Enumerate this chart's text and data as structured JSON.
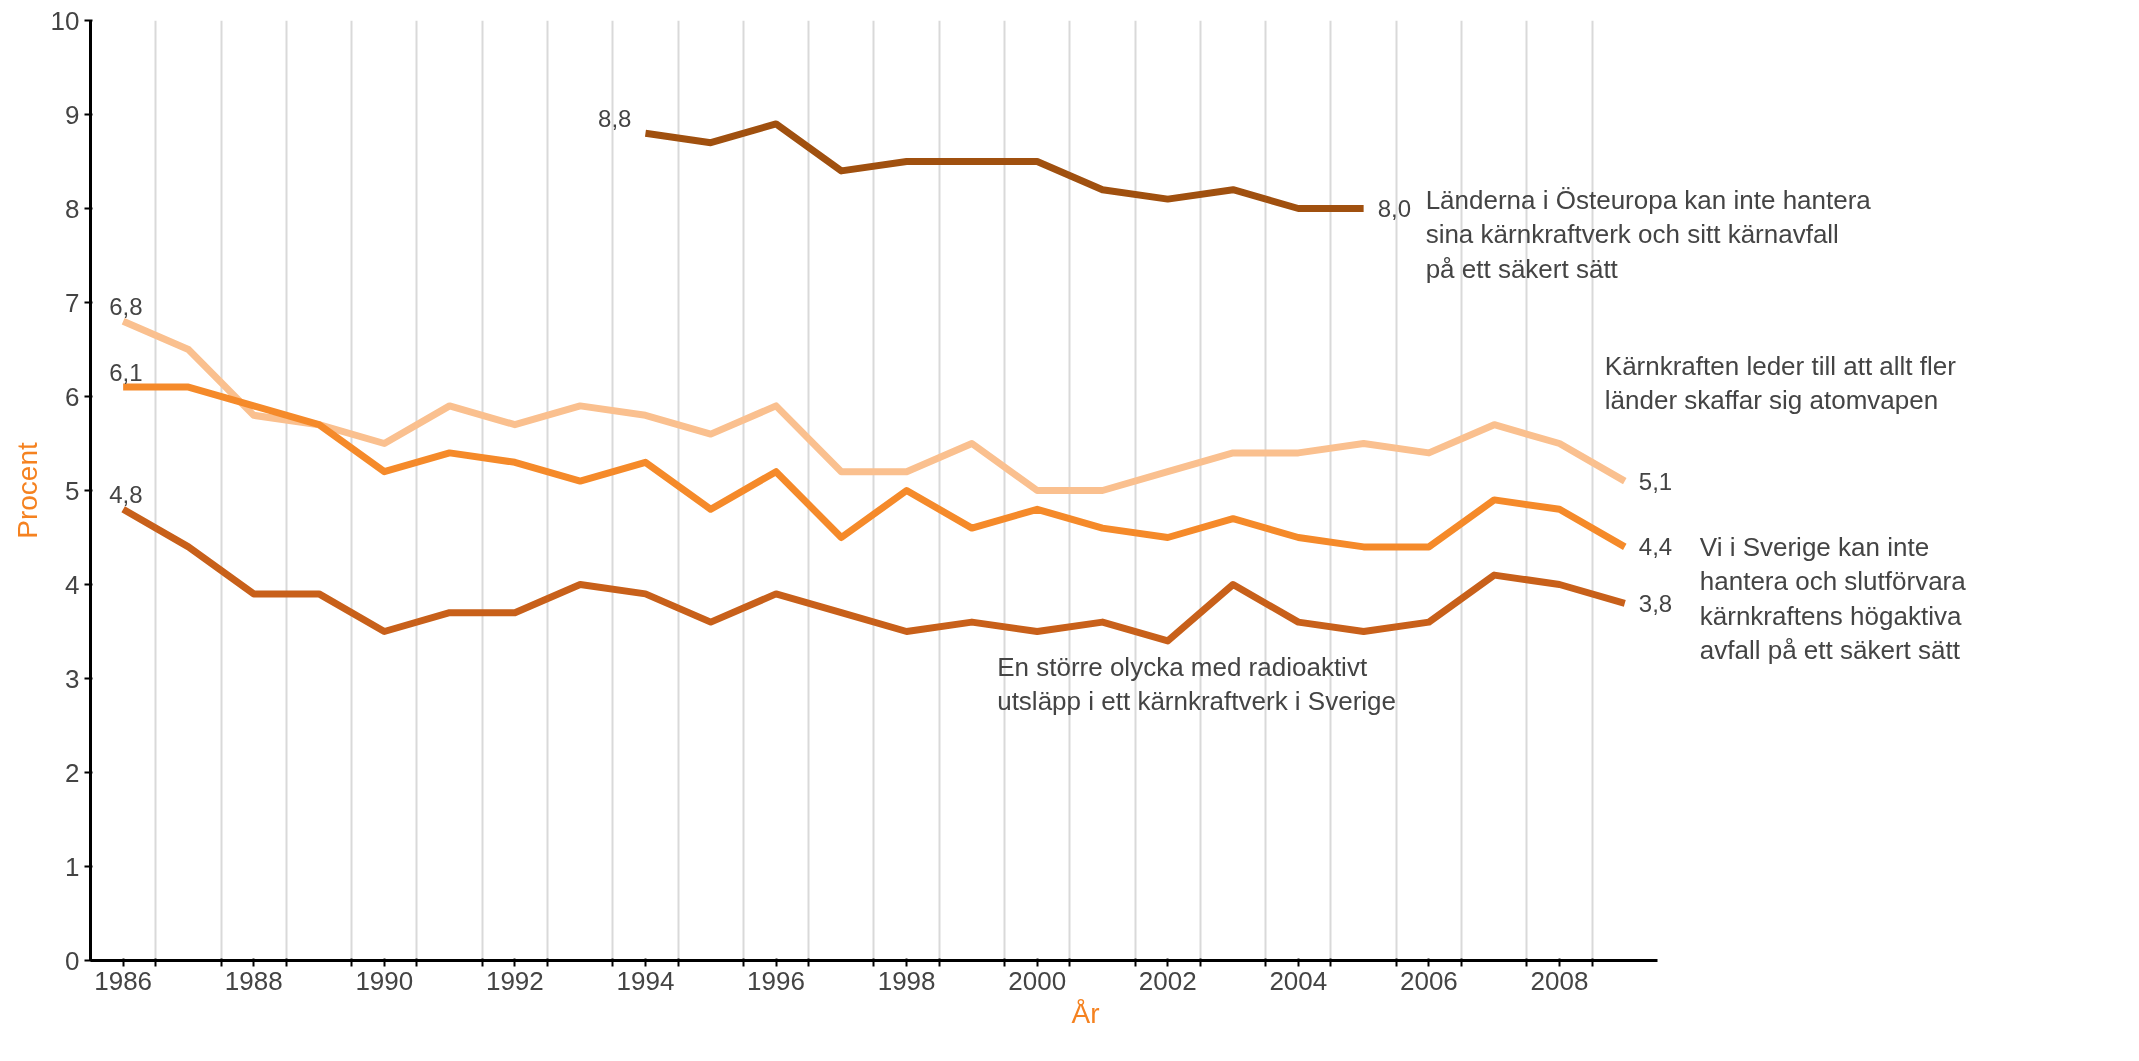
{
  "chart_data": {
    "type": "line",
    "xlabel": "År",
    "ylabel": "Procent",
    "x": [
      1986,
      1987,
      1988,
      1989,
      1990,
      1991,
      1992,
      1993,
      1994,
      1995,
      1996,
      1997,
      1998,
      1999,
      2000,
      2001,
      2002,
      2003,
      2004,
      2005,
      2006,
      2007,
      2008,
      2009
    ],
    "xlim": [
      1985.5,
      2009.5
    ],
    "ylim": [
      0,
      10
    ],
    "yticks": [
      0,
      1,
      2,
      3,
      4,
      5,
      6,
      7,
      8,
      9,
      10
    ],
    "xticks": [
      1986,
      {
        "value": 1986.5,
        "label": null
      },
      1988,
      {
        "value": 1987.5,
        "label": null
      },
      {
        "value": 1988.5,
        "label": null
      },
      1990,
      {
        "value": 1989.5,
        "label": null
      },
      {
        "value": 1990.5,
        "label": null
      },
      1992,
      {
        "value": 1991.5,
        "label": null
      },
      {
        "value": 1992.5,
        "label": null
      },
      1994,
      {
        "value": 1993.5,
        "label": null
      },
      {
        "value": 1994.5,
        "label": null
      },
      1996,
      {
        "value": 1995.5,
        "label": null
      },
      {
        "value": 1996.5,
        "label": null
      },
      1998,
      {
        "value": 1997.5,
        "label": null
      },
      {
        "value": 1998.5,
        "label": null
      },
      2000,
      {
        "value": 1999.5,
        "label": null
      },
      {
        "value": 2000.5,
        "label": null
      },
      2002,
      {
        "value": 2001.5,
        "label": null
      },
      {
        "value": 2002.5,
        "label": null
      },
      2004,
      {
        "value": 2003.5,
        "label": null
      },
      {
        "value": 2004.5,
        "label": null
      },
      2006,
      {
        "value": 2005.5,
        "label": null
      },
      {
        "value": 2006.5,
        "label": null
      },
      2008,
      {
        "value": 2007.5,
        "label": null
      },
      {
        "value": 2008.5,
        "label": null
      }
    ],
    "grid": "x",
    "series": [
      {
        "name": "Länderna i Östeuropa kan inte hantera sina kärnkraftverk och sitt kärnavfall på ett säkert sätt",
        "color": "#a0500f",
        "values": [
          null,
          null,
          null,
          null,
          null,
          null,
          null,
          null,
          8.8,
          8.7,
          8.9,
          8.4,
          8.5,
          8.5,
          8.5,
          8.2,
          8.1,
          8.2,
          8.0,
          8.0,
          null,
          null,
          null,
          null
        ],
        "value_labels": [
          null,
          null,
          null,
          null,
          null,
          null,
          null,
          null,
          "8,8",
          null,
          null,
          null,
          null,
          null,
          null,
          null,
          null,
          null,
          null,
          "8,0",
          null,
          null,
          null,
          null
        ]
      },
      {
        "name": "Kärnkraften leder till att allt fler länder skaffar sig atomvapen",
        "color": "#fac08f",
        "values": [
          6.8,
          6.5,
          5.8,
          5.7,
          5.5,
          5.9,
          5.7,
          5.9,
          5.8,
          5.6,
          5.9,
          5.2,
          5.2,
          5.5,
          5.0,
          5.0,
          5.2,
          5.4,
          5.4,
          5.5,
          5.4,
          5.7,
          5.5,
          5.1
        ],
        "value_labels": [
          "6,8",
          null,
          null,
          null,
          null,
          null,
          null,
          null,
          null,
          null,
          null,
          null,
          null,
          null,
          null,
          null,
          null,
          null,
          null,
          null,
          null,
          null,
          null,
          "5,1"
        ]
      },
      {
        "name": "Vi i Sverige kan inte hantera och slutförvara kärnkraftens högaktiva avfall på ett säkert sätt",
        "color": "#f58a2a",
        "values": [
          6.1,
          6.1,
          5.9,
          5.7,
          5.2,
          5.4,
          5.3,
          5.1,
          5.3,
          4.8,
          5.2,
          4.5,
          5.0,
          4.6,
          4.8,
          4.6,
          4.5,
          4.7,
          4.5,
          4.4,
          4.4,
          4.9,
          4.8,
          4.4
        ],
        "value_labels": [
          "6,1",
          null,
          null,
          null,
          null,
          null,
          null,
          null,
          null,
          null,
          null,
          null,
          null,
          null,
          null,
          null,
          null,
          null,
          null,
          null,
          null,
          null,
          null,
          "4,4"
        ]
      },
      {
        "name": "En större olycka med radioaktivt utsläpp i ett kärnkraftverk i Sverige",
        "color": "#c8601a",
        "values": [
          4.8,
          4.4,
          3.9,
          3.9,
          3.5,
          3.7,
          3.7,
          4.0,
          3.9,
          3.6,
          3.9,
          3.7,
          3.5,
          3.6,
          3.5,
          3.6,
          3.4,
          4.0,
          3.6,
          3.5,
          3.6,
          4.1,
          4.0,
          3.8
        ],
        "value_labels": [
          "4,8",
          null,
          null,
          null,
          null,
          null,
          null,
          null,
          null,
          null,
          null,
          null,
          null,
          null,
          null,
          null,
          null,
          null,
          null,
          null,
          null,
          null,
          null,
          "3,8"
        ]
      }
    ]
  }
}
